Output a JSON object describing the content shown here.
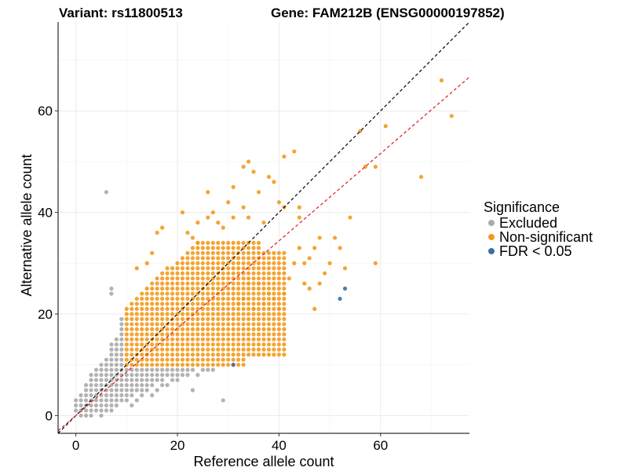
{
  "chart_data": {
    "type": "scatter",
    "title_left": "Variant: rs11800513",
    "title_right": "Gene: FAM212B (ENSG00000197852)",
    "xlabel": "Reference allele count",
    "ylabel": "Alternative allele count",
    "xlim": [
      -3.5,
      77.5
    ],
    "ylim": [
      -3.5,
      77.5
    ],
    "xticks": [
      0,
      20,
      40,
      60
    ],
    "yticks": [
      0,
      20,
      40,
      60
    ],
    "grid": true,
    "legend": {
      "title": "Significance",
      "placement": "right",
      "entries": [
        {
          "label": "Excluded",
          "color": "#aaaaaa"
        },
        {
          "label": "Non-significant",
          "color": "#f39a1c"
        },
        {
          "label": "FDR < 0.05",
          "color": "#3d6fa0"
        }
      ]
    },
    "reference_lines": [
      {
        "name": "identity",
        "slope": 1,
        "intercept": 0,
        "color": "#000000",
        "dash": true
      },
      {
        "name": "fit",
        "slope": 0.86,
        "intercept": 0,
        "color": "#e41a1c",
        "dash": true
      }
    ],
    "series": [
      {
        "name": "Excluded",
        "color": "#aaaaaa",
        "points": [
          [
            0,
            1
          ],
          [
            0,
            2
          ],
          [
            0,
            3
          ],
          [
            1,
            0
          ],
          [
            1,
            1
          ],
          [
            1,
            2
          ],
          [
            1,
            3
          ],
          [
            1,
            4
          ],
          [
            2,
            0
          ],
          [
            2,
            1
          ],
          [
            2,
            2
          ],
          [
            2,
            3
          ],
          [
            2,
            4
          ],
          [
            2,
            5
          ],
          [
            2,
            6
          ],
          [
            3,
            0
          ],
          [
            3,
            1
          ],
          [
            3,
            2
          ],
          [
            3,
            3
          ],
          [
            3,
            4
          ],
          [
            3,
            5
          ],
          [
            3,
            6
          ],
          [
            3,
            7
          ],
          [
            3,
            8
          ],
          [
            4,
            1
          ],
          [
            4,
            2
          ],
          [
            4,
            3
          ],
          [
            4,
            4
          ],
          [
            4,
            5
          ],
          [
            4,
            6
          ],
          [
            4,
            7
          ],
          [
            4,
            8
          ],
          [
            4,
            9
          ],
          [
            5,
            0
          ],
          [
            5,
            1
          ],
          [
            5,
            2
          ],
          [
            5,
            3
          ],
          [
            5,
            4
          ],
          [
            5,
            5
          ],
          [
            5,
            6
          ],
          [
            5,
            7
          ],
          [
            5,
            8
          ],
          [
            5,
            9
          ],
          [
            5,
            10
          ],
          [
            6,
            1
          ],
          [
            6,
            2
          ],
          [
            6,
            3
          ],
          [
            6,
            4
          ],
          [
            6,
            5
          ],
          [
            6,
            6
          ],
          [
            6,
            7
          ],
          [
            6,
            8
          ],
          [
            6,
            9
          ],
          [
            6,
            10
          ],
          [
            6,
            11
          ],
          [
            7,
            1
          ],
          [
            7,
            2
          ],
          [
            7,
            3
          ],
          [
            7,
            4
          ],
          [
            7,
            5
          ],
          [
            7,
            6
          ],
          [
            7,
            7
          ],
          [
            7,
            8
          ],
          [
            7,
            9
          ],
          [
            7,
            10
          ],
          [
            7,
            11
          ],
          [
            7,
            12
          ],
          [
            7,
            13
          ],
          [
            7,
            14
          ],
          [
            8,
            2
          ],
          [
            8,
            3
          ],
          [
            8,
            4
          ],
          [
            8,
            5
          ],
          [
            8,
            6
          ],
          [
            8,
            7
          ],
          [
            8,
            8
          ],
          [
            8,
            9
          ],
          [
            8,
            10
          ],
          [
            8,
            11
          ],
          [
            8,
            12
          ],
          [
            8,
            13
          ],
          [
            8,
            14
          ],
          [
            8,
            15
          ],
          [
            9,
            3
          ],
          [
            9,
            4
          ],
          [
            9,
            5
          ],
          [
            9,
            6
          ],
          [
            9,
            7
          ],
          [
            9,
            8
          ],
          [
            9,
            9
          ],
          [
            9,
            10
          ],
          [
            9,
            11
          ],
          [
            9,
            12
          ],
          [
            9,
            13
          ],
          [
            9,
            14
          ],
          [
            9,
            15
          ],
          [
            9,
            16
          ],
          [
            9,
            17
          ],
          [
            9,
            18
          ],
          [
            9,
            19
          ],
          [
            10,
            3
          ],
          [
            10,
            4
          ],
          [
            10,
            5
          ],
          [
            10,
            6
          ],
          [
            10,
            7
          ],
          [
            10,
            8
          ],
          [
            10,
            9
          ],
          [
            11,
            2
          ],
          [
            11,
            4
          ],
          [
            11,
            5
          ],
          [
            11,
            6
          ],
          [
            11,
            7
          ],
          [
            11,
            8
          ],
          [
            11,
            9
          ],
          [
            12,
            3
          ],
          [
            12,
            5
          ],
          [
            12,
            6
          ],
          [
            12,
            7
          ],
          [
            12,
            8
          ],
          [
            12,
            9
          ],
          [
            13,
            4
          ],
          [
            13,
            5
          ],
          [
            13,
            6
          ],
          [
            13,
            7
          ],
          [
            13,
            8
          ],
          [
            13,
            9
          ],
          [
            14,
            5
          ],
          [
            14,
            6
          ],
          [
            14,
            7
          ],
          [
            14,
            8
          ],
          [
            14,
            9
          ],
          [
            15,
            4
          ],
          [
            15,
            6
          ],
          [
            15,
            7
          ],
          [
            15,
            8
          ],
          [
            15,
            9
          ],
          [
            16,
            5
          ],
          [
            16,
            7
          ],
          [
            16,
            8
          ],
          [
            16,
            9
          ],
          [
            17,
            6
          ],
          [
            17,
            7
          ],
          [
            17,
            8
          ],
          [
            17,
            9
          ],
          [
            18,
            6
          ],
          [
            18,
            8
          ],
          [
            18,
            9
          ],
          [
            19,
            7
          ],
          [
            19,
            8
          ],
          [
            19,
            9
          ],
          [
            20,
            7
          ],
          [
            20,
            8
          ],
          [
            20,
            9
          ],
          [
            21,
            8
          ],
          [
            21,
            9
          ],
          [
            22,
            8
          ],
          [
            22,
            9
          ],
          [
            23,
            9
          ],
          [
            24,
            8
          ],
          [
            25,
            9
          ],
          [
            26,
            9
          ],
          [
            27,
            9
          ],
          [
            6,
            44
          ],
          [
            7,
            25
          ],
          [
            7,
            24
          ],
          [
            29,
            3
          ],
          [
            23,
            5
          ]
        ]
      },
      {
        "name": "Non-significant",
        "color": "#f39a1c",
        "points": "grid: x 10–40, y 10 up to about x+12 (core density), plus scattered outliers",
        "extra": [
          [
            72,
            66
          ],
          [
            74,
            59
          ],
          [
            61,
            57
          ],
          [
            56,
            56
          ],
          [
            59,
            49
          ],
          [
            57,
            49
          ],
          [
            68,
            47
          ],
          [
            59,
            30
          ],
          [
            43,
            52
          ],
          [
            41,
            51
          ],
          [
            34,
            50
          ],
          [
            33,
            49
          ],
          [
            35,
            48
          ],
          [
            38,
            47
          ],
          [
            39,
            46
          ],
          [
            31,
            45
          ],
          [
            36,
            44
          ],
          [
            26,
            44
          ],
          [
            30,
            42
          ],
          [
            33,
            41
          ],
          [
            40,
            42
          ],
          [
            41,
            41
          ],
          [
            44,
            41
          ],
          [
            44,
            39
          ],
          [
            54,
            39
          ],
          [
            51,
            35
          ],
          [
            48,
            35
          ],
          [
            52,
            33
          ],
          [
            50,
            30
          ],
          [
            53,
            29
          ],
          [
            46,
            25
          ],
          [
            47,
            21
          ],
          [
            40,
            21
          ],
          [
            35,
            21
          ],
          [
            37,
            22
          ],
          [
            38,
            24
          ],
          [
            47,
            33
          ],
          [
            46,
            31
          ],
          [
            43,
            30
          ],
          [
            45,
            30
          ],
          [
            42,
            27
          ],
          [
            45,
            26
          ],
          [
            41,
            24
          ],
          [
            39,
            23
          ],
          [
            17,
            37
          ],
          [
            16,
            36
          ],
          [
            22,
            36
          ],
          [
            26,
            39
          ],
          [
            28,
            38
          ],
          [
            29,
            37
          ],
          [
            12,
            29
          ],
          [
            14,
            30
          ],
          [
            15,
            32
          ],
          [
            32,
            22
          ],
          [
            33,
            23
          ],
          [
            34,
            26
          ],
          [
            36,
            26
          ],
          [
            21,
            40
          ],
          [
            24,
            38
          ],
          [
            27,
            40
          ],
          [
            31,
            39
          ],
          [
            34,
            39
          ],
          [
            37,
            38
          ],
          [
            23,
            35
          ],
          [
            24,
            34
          ],
          [
            44,
            33
          ],
          [
            49,
            28
          ],
          [
            48,
            26
          ]
        ]
      },
      {
        "name": "FDR < 0.05",
        "color": "#3d6fa0",
        "points": [
          [
            53,
            25
          ],
          [
            52,
            23
          ],
          [
            31,
            10
          ]
        ]
      }
    ]
  }
}
